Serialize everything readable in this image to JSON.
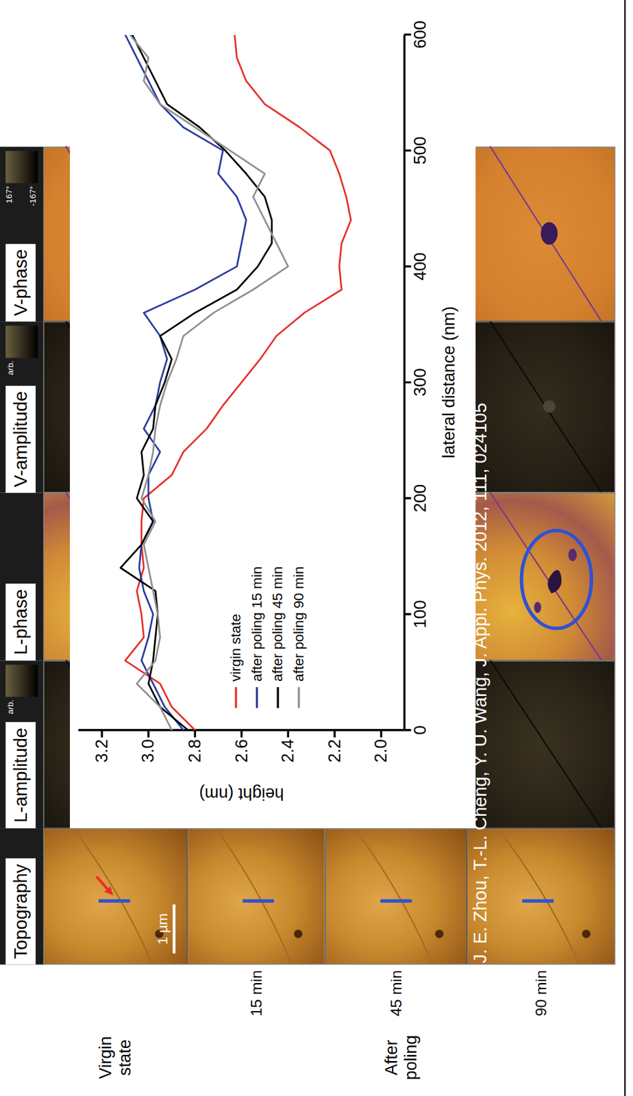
{
  "chart_data": {
    "type": "line",
    "xlabel": "lateral distance (nm)",
    "ylabel": "height (nm)",
    "xlim": [
      0,
      600
    ],
    "xticks": [
      0,
      100,
      200,
      300,
      400,
      500,
      600
    ],
    "ylim": [
      1.9,
      3.3
    ],
    "yticks": [
      {
        "value": 2,
        "label": "2.0"
      },
      {
        "value": 2.2,
        "label": "2.2"
      },
      {
        "value": 2.4,
        "label": "2.4"
      },
      {
        "value": 2.6,
        "label": "2.6"
      },
      {
        "value": 2.8,
        "label": "2.8"
      },
      {
        "value": 3,
        "label": "3.0"
      },
      {
        "value": 3.2,
        "label": "3.2"
      }
    ],
    "legend": "bottom-left",
    "x": [
      0,
      20,
      40,
      60,
      80,
      100,
      120,
      140,
      160,
      180,
      200,
      220,
      240,
      260,
      280,
      300,
      320,
      340,
      360,
      380,
      400,
      420,
      440,
      460,
      480,
      500,
      520,
      540,
      560,
      580,
      600
    ],
    "series": [
      {
        "name": "virgin state",
        "color": "#e8302a",
        "values": [
          2.8,
          2.9,
          2.95,
          3.1,
          3.02,
          3.03,
          3.05,
          3.02,
          3.03,
          3.03,
          3.02,
          2.9,
          2.85,
          2.75,
          2.68,
          2.6,
          2.52,
          2.45,
          2.33,
          2.17,
          2.18,
          2.17,
          2.13,
          2.15,
          2.18,
          2.22,
          2.35,
          2.5,
          2.58,
          2.62,
          2.63
        ]
      },
      {
        "name": "after poling 15 min",
        "color": "#2a3b9e",
        "values": [
          2.85,
          2.93,
          2.98,
          3.03,
          3.0,
          2.98,
          3.02,
          3.04,
          3.03,
          2.98,
          3.0,
          3.0,
          2.95,
          3.02,
          2.97,
          2.95,
          2.92,
          2.95,
          3.02,
          2.8,
          2.62,
          2.6,
          2.58,
          2.62,
          2.7,
          2.68,
          2.85,
          2.95,
          3.0,
          3.05,
          3.1
        ]
      },
      {
        "name": "after poling 45 min",
        "color": "#000000",
        "values": [
          2.83,
          2.95,
          3.0,
          2.98,
          2.97,
          2.96,
          2.97,
          3.12,
          3.03,
          2.98,
          3.05,
          3.02,
          3.03,
          2.98,
          2.97,
          2.93,
          2.9,
          2.95,
          2.8,
          2.62,
          2.53,
          2.47,
          2.47,
          2.5,
          2.58,
          2.67,
          2.78,
          2.92,
          2.97,
          3.02,
          3.07
        ]
      },
      {
        "name": "after poling 90 min",
        "color": "#909090",
        "values": [
          2.9,
          2.95,
          3.05,
          2.97,
          2.95,
          2.96,
          2.98,
          3.0,
          3.02,
          2.97,
          3.03,
          3.0,
          2.98,
          2.97,
          2.95,
          2.92,
          2.88,
          2.85,
          2.72,
          2.55,
          2.4,
          2.45,
          2.5,
          2.55,
          2.5,
          2.65,
          2.8,
          2.95,
          3.02,
          3.0,
          3.08
        ]
      }
    ]
  },
  "figure": {
    "columns": [
      "Topography",
      "L-amplitude",
      "L-phase",
      "V-amplitude",
      "V-phase"
    ],
    "colorbar_labels": {
      "L-amplitude": [
        "arb."
      ],
      "V-amplitude": [
        "arb."
      ],
      "V-phase": [
        "-167°",
        "167°"
      ]
    },
    "row_groups": [
      {
        "label": "Virgin state",
        "rows": []
      },
      {
        "label": "After poling",
        "rows": [
          "15 min",
          "45 min",
          "90 min"
        ]
      }
    ],
    "scale_bar": "1 µm",
    "citation": "J. E. Zhou, T.-L. Cheng, Y. U. Wang, J. Appl. Phys. 2012, 111, 024105"
  }
}
